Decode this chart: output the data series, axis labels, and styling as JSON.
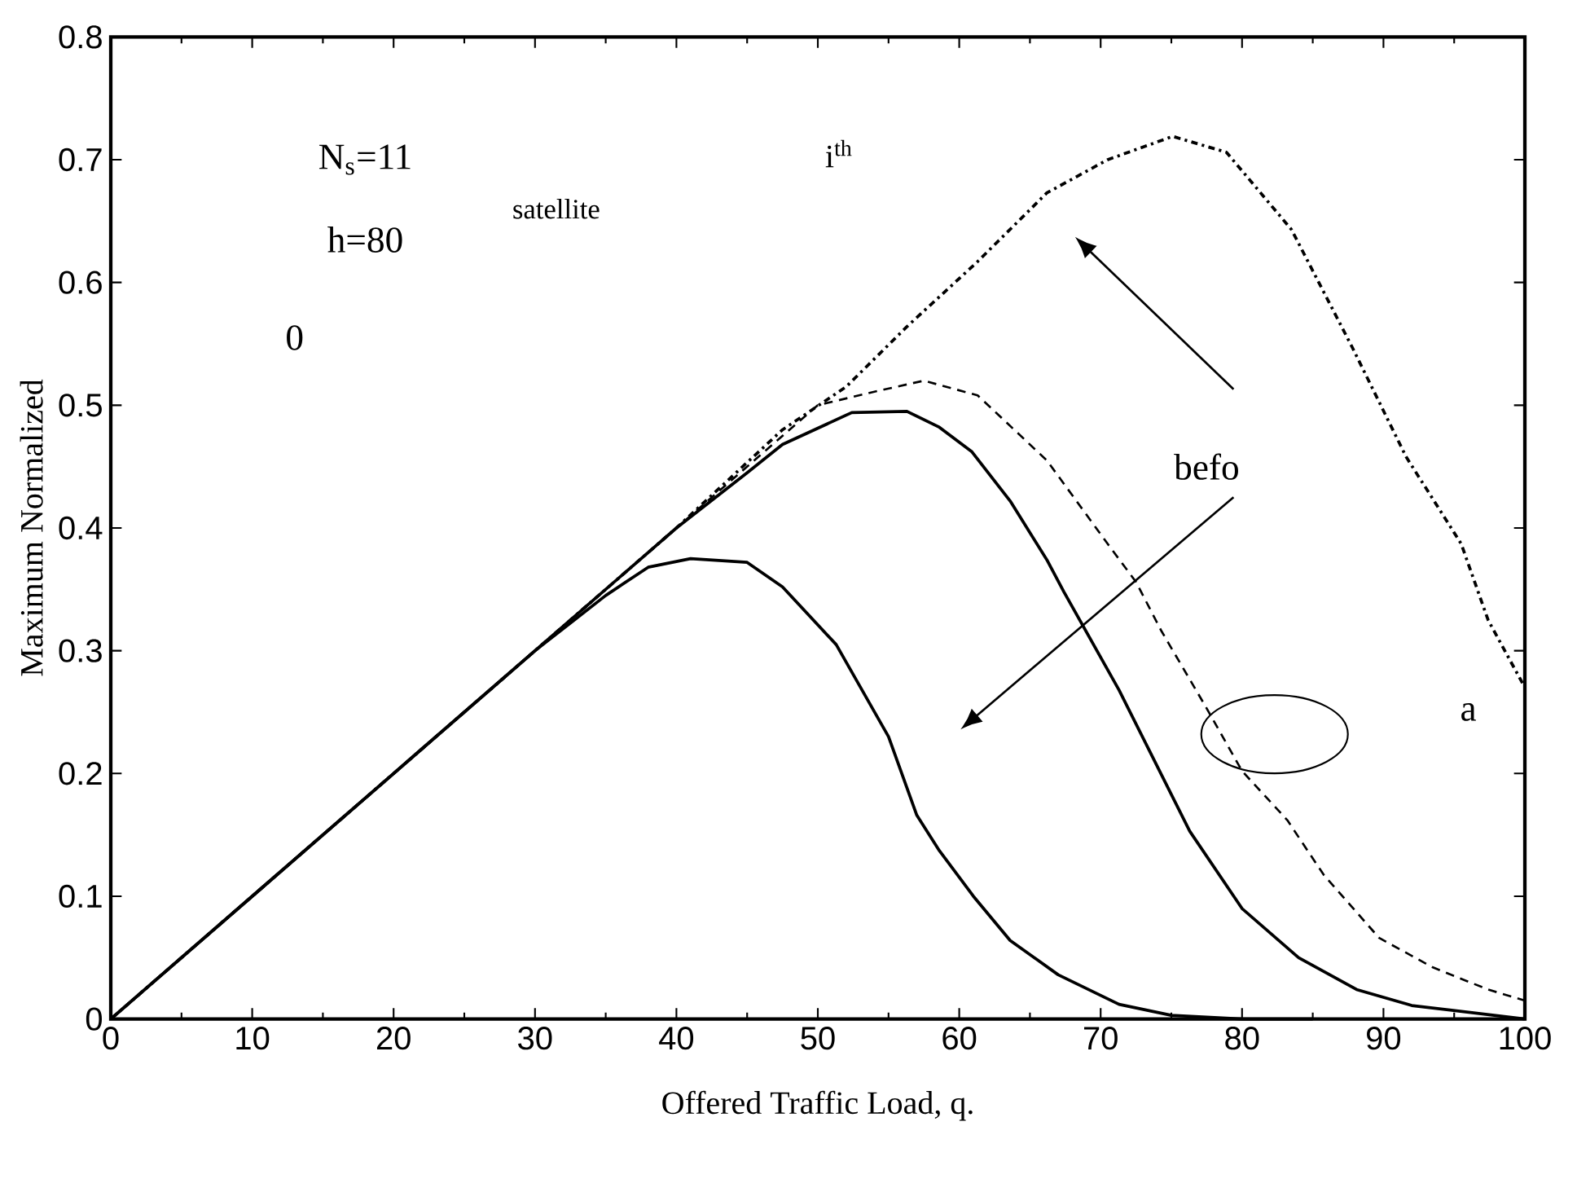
{
  "chart_data": {
    "type": "line",
    "xlabel": "Offered Traffic Load, q.",
    "ylabel": "Maximum Normalized",
    "xlim": [
      0,
      100
    ],
    "ylim": [
      0,
      0.8
    ],
    "xticks": [
      0,
      10,
      20,
      30,
      40,
      50,
      60,
      70,
      80,
      90,
      100
    ],
    "yticks": [
      0,
      0.1,
      0.2,
      0.3,
      0.4,
      0.5,
      0.6,
      0.7,
      0.8
    ],
    "grid": false,
    "annotations": [
      "N$_{s}$=11",
      "h=80",
      "0",
      "satellite",
      "i$^{th}$",
      "befo",
      "a"
    ],
    "series": [
      {
        "color": "#000000",
        "line_style": "solid",
        "x": [
          0,
          10,
          20,
          30,
          35,
          38,
          41,
          45,
          47.5,
          51.3,
          55,
          57,
          58.6,
          61,
          63.6,
          67,
          71.3,
          75,
          80,
          85
        ],
        "values": [
          0,
          0.1,
          0.2,
          0.3,
          0.345,
          0.368,
          0.375,
          0.372,
          0.352,
          0.305,
          0.23,
          0.166,
          0.137,
          0.1,
          0.064,
          0.036,
          0.012,
          0.003,
          0,
          0
        ]
      },
      {
        "color": "#000000",
        "line_style": "solid",
        "x": [
          0,
          10,
          20,
          30,
          40,
          45,
          47.5,
          52.4,
          56.3,
          58.6,
          60.9,
          63.6,
          66.2,
          67.4,
          71.3,
          76.3,
          80,
          84,
          88.1,
          92,
          100
        ],
        "values": [
          0,
          0.1,
          0.2,
          0.3,
          0.4,
          0.445,
          0.468,
          0.494,
          0.495,
          0.482,
          0.462,
          0.422,
          0.374,
          0.348,
          0.268,
          0.153,
          0.09,
          0.05,
          0.024,
          0.011,
          0
        ]
      },
      {
        "color": "#000000",
        "line_style": "dashed",
        "x": [
          0,
          10,
          20,
          30,
          40,
          45,
          50,
          54,
          57.5,
          61.3,
          66.2,
          70.5,
          72.5,
          74.3,
          77.4,
          80,
          83.2,
          85.8,
          89.7,
          93.5,
          97.4,
          100
        ],
        "values": [
          0,
          0.1,
          0.2,
          0.3,
          0.4,
          0.45,
          0.5,
          0.511,
          0.52,
          0.508,
          0.455,
          0.387,
          0.356,
          0.316,
          0.255,
          0.202,
          0.162,
          0.117,
          0.066,
          0.042,
          0.024,
          0.015
        ]
      },
      {
        "color": "#000000",
        "line_style": "dotted",
        "x": [
          0,
          10,
          20,
          30,
          40,
          47.5,
          52,
          56.3,
          61.3,
          66.2,
          70.5,
          75.1,
          78.9,
          83.5,
          87.8,
          91.6,
          95.5,
          97.4,
          100
        ],
        "values": [
          0,
          0.1,
          0.2,
          0.3,
          0.4,
          0.48,
          0.515,
          0.564,
          0.617,
          0.673,
          0.7,
          0.719,
          0.706,
          0.643,
          0.547,
          0.458,
          0.387,
          0.325,
          0.27
        ]
      }
    ]
  }
}
